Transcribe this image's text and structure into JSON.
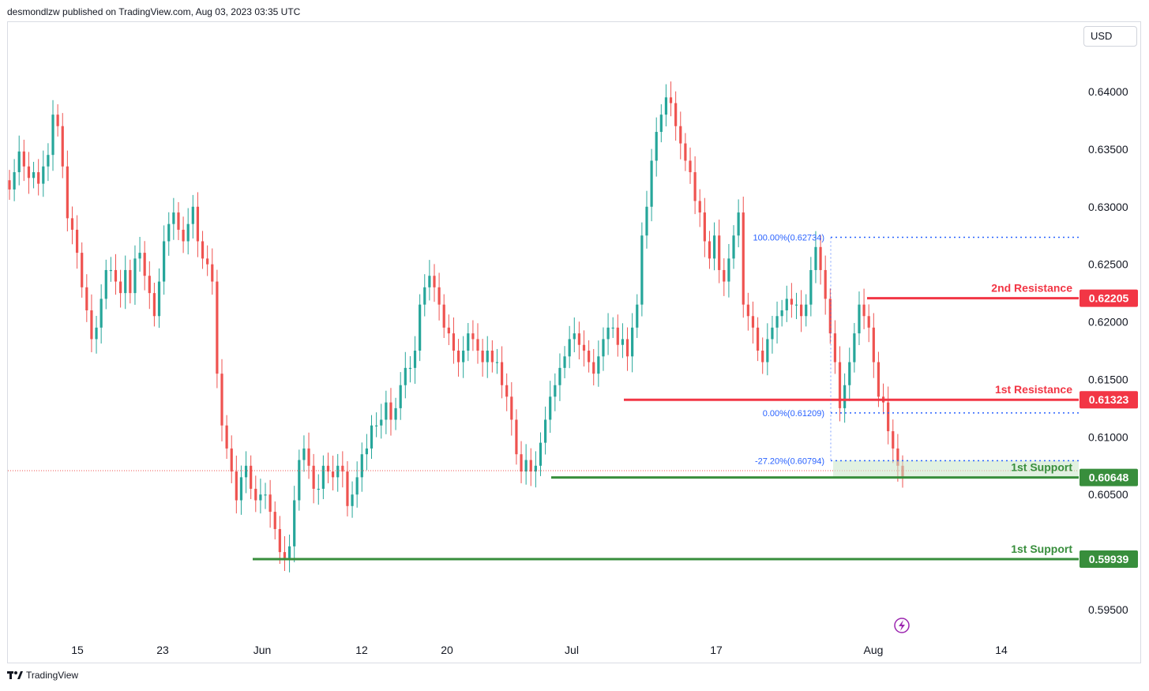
{
  "header": {
    "published_by": "desmondlzw published on TradingView.com, Aug 03, 2023 03:35 UTC"
  },
  "currency_button": {
    "label": "USD"
  },
  "footer": {
    "brand": "TradingView"
  },
  "colors": {
    "up": "#26a69a",
    "down": "#ef5350",
    "resistance": "#f23645",
    "support": "#388e3c",
    "fib": "#2962ff",
    "grid_text": "#131722",
    "zone": "#c8e6c9"
  },
  "chart_data": {
    "type": "candlestick",
    "symbol_quote": "USD",
    "y_ticks": [
      "0.64000",
      "0.63500",
      "0.63000",
      "0.62500",
      "0.62000",
      "0.61500",
      "0.61000",
      "0.60500",
      "0.59500"
    ],
    "y_tick_values": [
      0.64,
      0.635,
      0.63,
      0.625,
      0.62,
      0.615,
      0.61,
      0.605,
      0.595
    ],
    "x_ticks": [
      "15",
      "23",
      "Jun",
      "12",
      "20",
      "Jul",
      "17",
      "Aug",
      "14"
    ],
    "ylim": [
      0.5935,
      0.6425
    ],
    "levels": [
      {
        "name": "2nd Resistance",
        "value": "0.62205",
        "kind": "resistance"
      },
      {
        "name": "1st Resistance",
        "value": "0.61323",
        "kind": "resistance"
      },
      {
        "name": "1st Support",
        "value": "0.60648",
        "kind": "support"
      },
      {
        "name": "1st Support",
        "value": "0.59939",
        "kind": "support"
      }
    ],
    "fibonacci": [
      {
        "label": "100.00%(0.62734)",
        "value": 0.62734
      },
      {
        "label": "0.00%(0.61209)",
        "value": 0.61209
      },
      {
        "label": "-27.20%(0.60794)",
        "value": 0.60794
      }
    ],
    "close_path": [
      0.6315,
      0.633,
      0.6348,
      0.6335,
      0.6325,
      0.633,
      0.632,
      0.6335,
      0.6345,
      0.638,
      0.637,
      0.6335,
      0.629,
      0.628,
      0.626,
      0.623,
      0.621,
      0.6185,
      0.6195,
      0.622,
      0.6245,
      0.6245,
      0.6235,
      0.6225,
      0.6245,
      0.6225,
      0.6255,
      0.626,
      0.624,
      0.6225,
      0.6205,
      0.6235,
      0.627,
      0.6285,
      0.6295,
      0.628,
      0.627,
      0.6285,
      0.63,
      0.627,
      0.6255,
      0.625,
      0.6235,
      0.6155,
      0.611,
      0.609,
      0.607,
      0.6045,
      0.6065,
      0.6075,
      0.6055,
      0.6045,
      0.605,
      0.605,
      0.6035,
      0.602,
      0.6,
      0.5995,
      0.6005,
      0.6045,
      0.608,
      0.609,
      0.6075,
      0.6055,
      0.6055,
      0.6075,
      0.607,
      0.6065,
      0.6075,
      0.607,
      0.604,
      0.605,
      0.6065,
      0.6085,
      0.609,
      0.611,
      0.611,
      0.6115,
      0.613,
      0.6115,
      0.6125,
      0.6145,
      0.616,
      0.616,
      0.6175,
      0.6215,
      0.623,
      0.624,
      0.623,
      0.6215,
      0.6195,
      0.619,
      0.6175,
      0.6165,
      0.6175,
      0.619,
      0.6185,
      0.6175,
      0.6165,
      0.6175,
      0.6165,
      0.6165,
      0.6145,
      0.6135,
      0.6115,
      0.6085,
      0.607,
      0.608,
      0.607,
      0.6075,
      0.6095,
      0.6115,
      0.6135,
      0.6145,
      0.616,
      0.617,
      0.6185,
      0.619,
      0.618,
      0.6175,
      0.6165,
      0.6155,
      0.617,
      0.6185,
      0.6195,
      0.6195,
      0.618,
      0.6185,
      0.617,
      0.6195,
      0.6215,
      0.6275,
      0.63,
      0.634,
      0.6365,
      0.638,
      0.6395,
      0.639,
      0.637,
      0.6355,
      0.634,
      0.633,
      0.6305,
      0.6295,
      0.627,
      0.6255,
      0.6275,
      0.6245,
      0.6235,
      0.6255,
      0.6275,
      0.6295,
      0.6215,
      0.6205,
      0.6195,
      0.6175,
      0.6165,
      0.6185,
      0.6195,
      0.6205,
      0.621,
      0.622,
      0.6215,
      0.6215,
      0.6205,
      0.6215,
      0.6245,
      0.6265,
      0.6245,
      0.622,
      0.619,
      0.6165,
      0.6125,
      0.6145,
      0.6165,
      0.619,
      0.6215,
      0.6205,
      0.6195,
      0.6165,
      0.6135,
      0.613,
      0.6105,
      0.609,
      0.6075,
      0.6065
    ]
  }
}
